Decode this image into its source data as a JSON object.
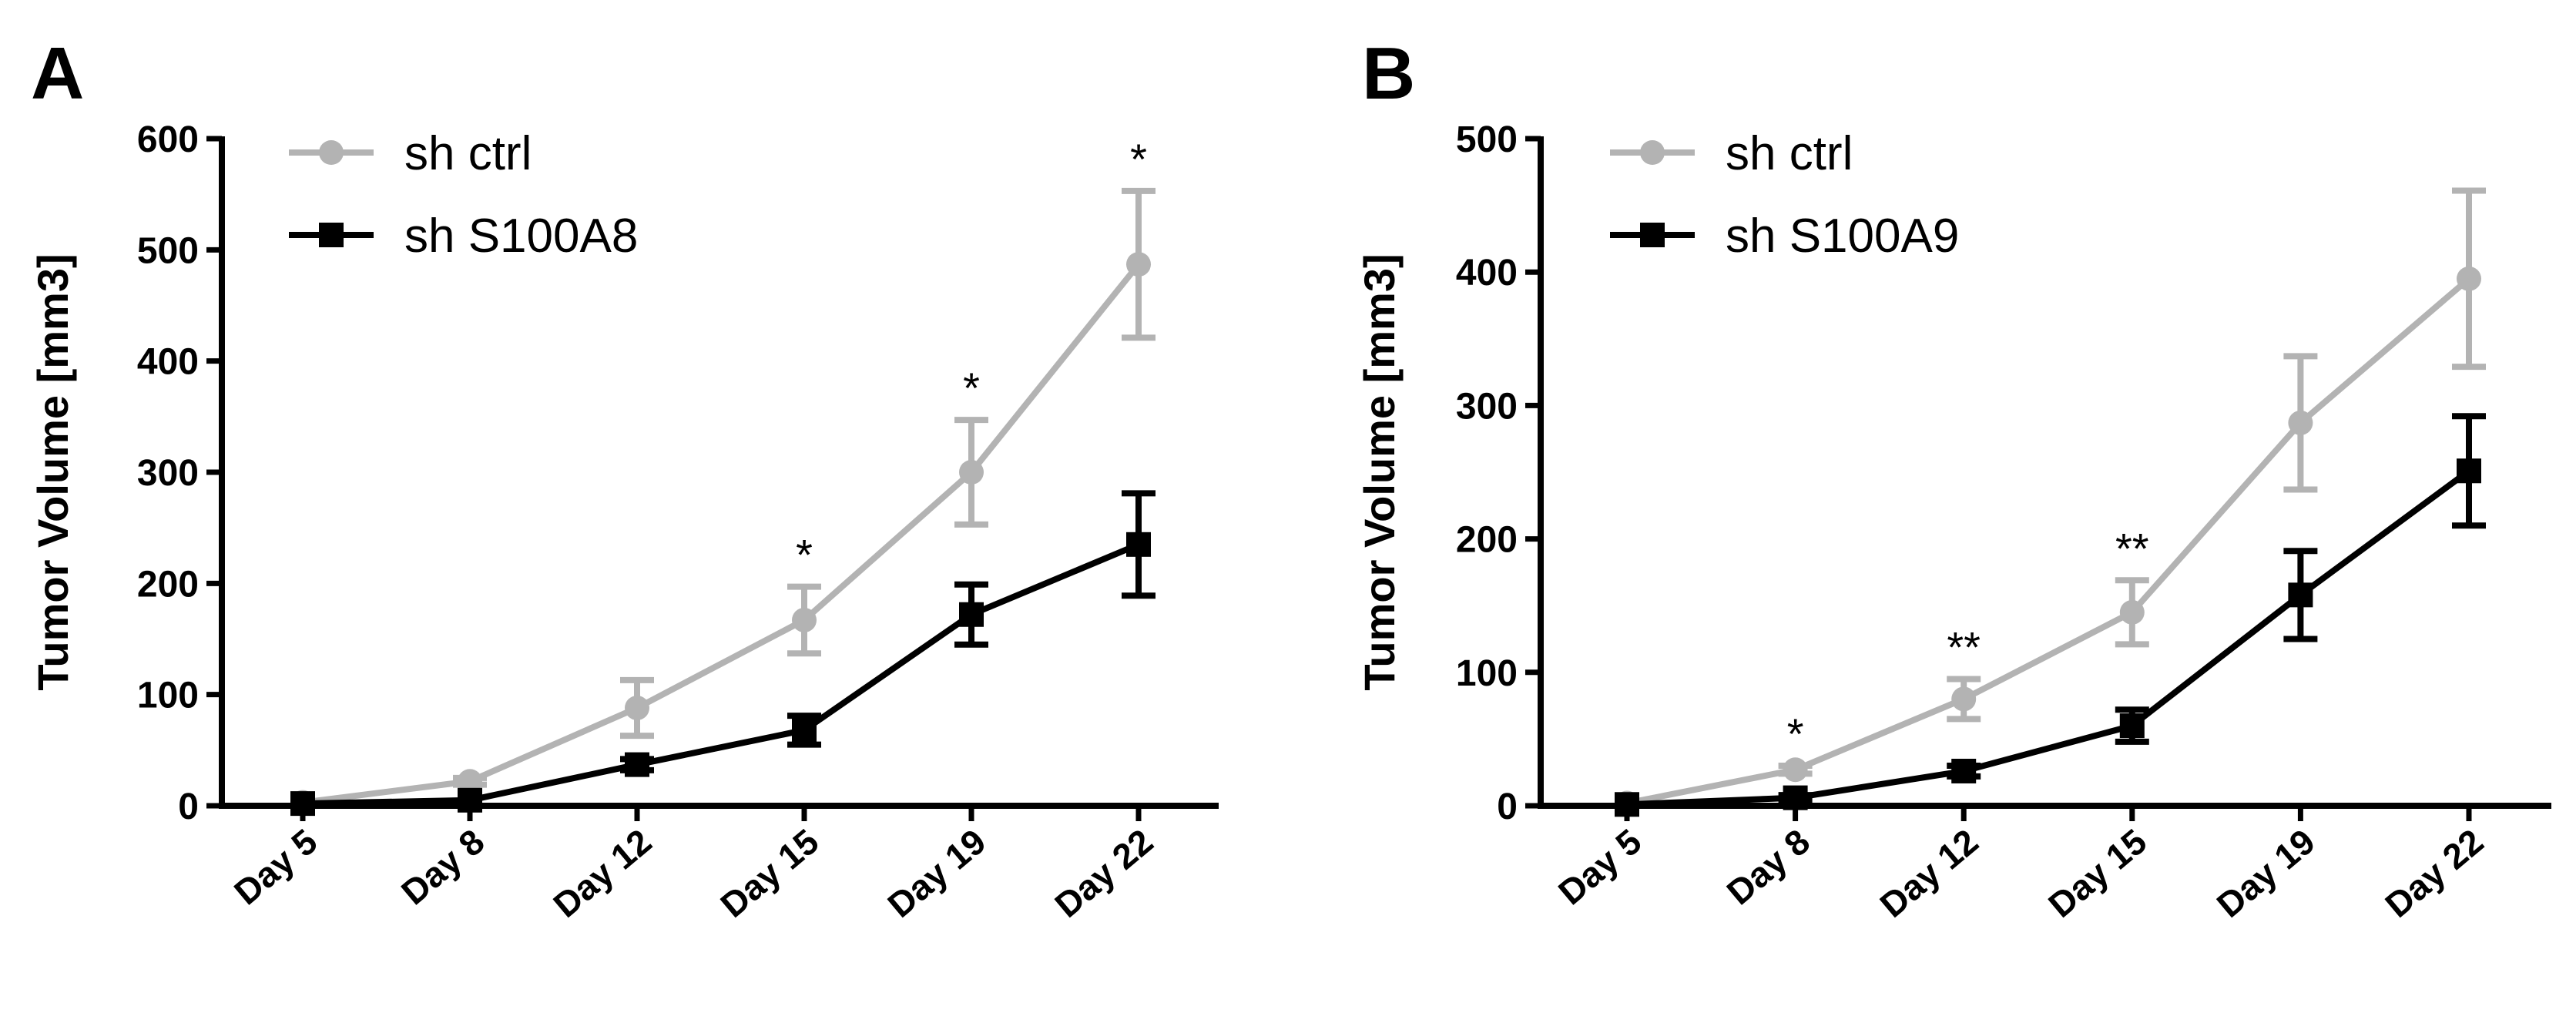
{
  "chart_data": [
    {
      "panel_label": "A",
      "type": "line",
      "title": "",
      "xlabel": "",
      "ylabel": "Tumor Volume [mm3]",
      "categories": [
        "Day 5",
        "Day 8",
        "Day 12",
        "Day 15",
        "Day 19",
        "Day 22"
      ],
      "ylim": [
        0,
        600
      ],
      "yticks": [
        "0",
        "100",
        "200",
        "300",
        "400",
        "500",
        "600"
      ],
      "grid": false,
      "legend_position": "top-left",
      "series": [
        {
          "name": "sh ctrl",
          "color": "#b3b3b3",
          "marker": "circle",
          "values": [
            3,
            22,
            88,
            167,
            300,
            487
          ],
          "errors": [
            2,
            3,
            25,
            30,
            47,
            66
          ]
        },
        {
          "name": "sh S100A8",
          "color": "#000000",
          "marker": "square",
          "values": [
            2,
            5,
            37,
            68,
            172,
            235
          ],
          "errors": [
            1,
            2,
            5,
            13,
            27,
            46
          ]
        }
      ],
      "significance": [
        "",
        "",
        "",
        "*",
        "*",
        "*"
      ]
    },
    {
      "panel_label": "B",
      "type": "line",
      "title": "",
      "xlabel": "",
      "ylabel": "Tumor Volume [mm3]",
      "categories": [
        "Day 5",
        "Day 8",
        "Day 12",
        "Day 15",
        "Day 19",
        "Day 22"
      ],
      "ylim": [
        0,
        500
      ],
      "yticks": [
        "0",
        "100",
        "200",
        "300",
        "400",
        "500"
      ],
      "grid": false,
      "legend_position": "top-left",
      "series": [
        {
          "name": "sh ctrl",
          "color": "#b3b3b3",
          "marker": "circle",
          "values": [
            2,
            27,
            80,
            145,
            287,
            395
          ],
          "errors": [
            1,
            3,
            15,
            24,
            50,
            66
          ]
        },
        {
          "name": "sh S100A9",
          "color": "#000000",
          "marker": "square",
          "values": [
            1,
            6,
            26,
            60,
            158,
            251
          ],
          "errors": [
            1,
            2,
            4,
            12,
            33,
            41
          ]
        }
      ],
      "significance": [
        "",
        "*",
        "**",
        "**",
        "",
        ""
      ]
    }
  ]
}
